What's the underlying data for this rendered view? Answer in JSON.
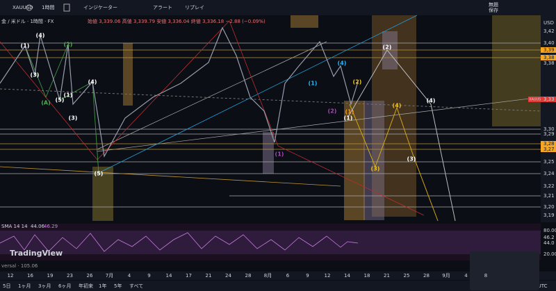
{
  "toolbar": {
    "symbol": "XAUUSD",
    "interval": "1時間",
    "indicators": "インジケーター",
    "alert": "アラート",
    "replay": "リプレイ",
    "layout": "無題",
    "save": "保存"
  },
  "legend": {
    "title": "金 / 米ドル · 1時間 · FX",
    "ohlc": "始値 3,339.06 高値 3,339.79 安値 3,336.04 終値 3,336.18 −2.88 (−0.09%)"
  },
  "price_axis": {
    "currency": "USD",
    "labels": [
      "3,42",
      "3,40",
      "3,39",
      "3,38",
      "3,38",
      "3,30",
      "3,29",
      "3,28",
      "3,27",
      "3,25",
      "3,24",
      "3,22",
      "3,21",
      "3,20",
      "3,19"
    ],
    "orange": [
      false,
      false,
      true,
      true,
      false,
      false,
      false,
      true,
      true,
      false,
      false,
      false,
      false,
      false,
      false
    ],
    "current": {
      "symbol": "XAUUSD",
      "price": "3,33"
    }
  },
  "time_axis": [
    "12",
    "16",
    "19",
    "23",
    "26",
    "7月",
    "4",
    "9",
    "14",
    "17",
    "21",
    "24",
    "28",
    "8月",
    "6",
    "9",
    "12",
    "14",
    "18",
    "21",
    "25",
    "28",
    "9月",
    "4",
    "8"
  ],
  "wave_labels": [
    {
      "text": "(1)",
      "color": "#ffffff"
    },
    {
      "text": "(4)",
      "color": "#ffffff"
    },
    {
      "text": "(3)",
      "color": "#ffffff"
    },
    {
      "text": "(2)",
      "color": "#4caf50"
    },
    {
      "text": "(1)",
      "color": "#ffffff"
    },
    {
      "text": "(5)",
      "color": "#ffffff"
    },
    {
      "text": "(A)",
      "color": "#4caf50"
    },
    {
      "text": "(4)",
      "color": "#ffffff"
    },
    {
      "text": "(3)",
      "color": "#ffffff"
    },
    {
      "text": "(5)",
      "color": "#ffffff"
    },
    {
      "text": "(2)",
      "color": "#ffffff"
    },
    {
      "text": "(2)",
      "color": "#f5c518"
    },
    {
      "text": "(1)",
      "color": "#ff9800"
    },
    {
      "text": "(1)",
      "color": "#ffffff"
    },
    {
      "text": "(4)",
      "color": "#f5c518"
    },
    {
      "text": "(4)",
      "color": "#ffffff"
    },
    {
      "text": "(3)",
      "color": "#f5c518"
    },
    {
      "text": "(3)",
      "color": "#ffffff"
    },
    {
      "text": "(1)",
      "color": "#ab47bc"
    },
    {
      "text": "(1)",
      "color": "#29b6f6"
    },
    {
      "text": "(4)",
      "color": "#29b6f6"
    },
    {
      "text": "(2)",
      "color": "#ab47bc"
    }
  ],
  "rsi": {
    "name": "SMA 14 14",
    "value1": "44.06",
    "value2": "46.29",
    "axis": [
      "80.00",
      "46.2",
      "44.0",
      "20.00"
    ]
  },
  "logo": "TradingView",
  "footer_note": "versal · 105.06",
  "bottom_bar": {
    "ranges": [
      "5日",
      "1ヶ月",
      "3ヶ月",
      "6ヶ月",
      "年初来",
      "1年",
      "5年",
      "すべて"
    ],
    "clock": "17:44:53 UTC"
  }
}
